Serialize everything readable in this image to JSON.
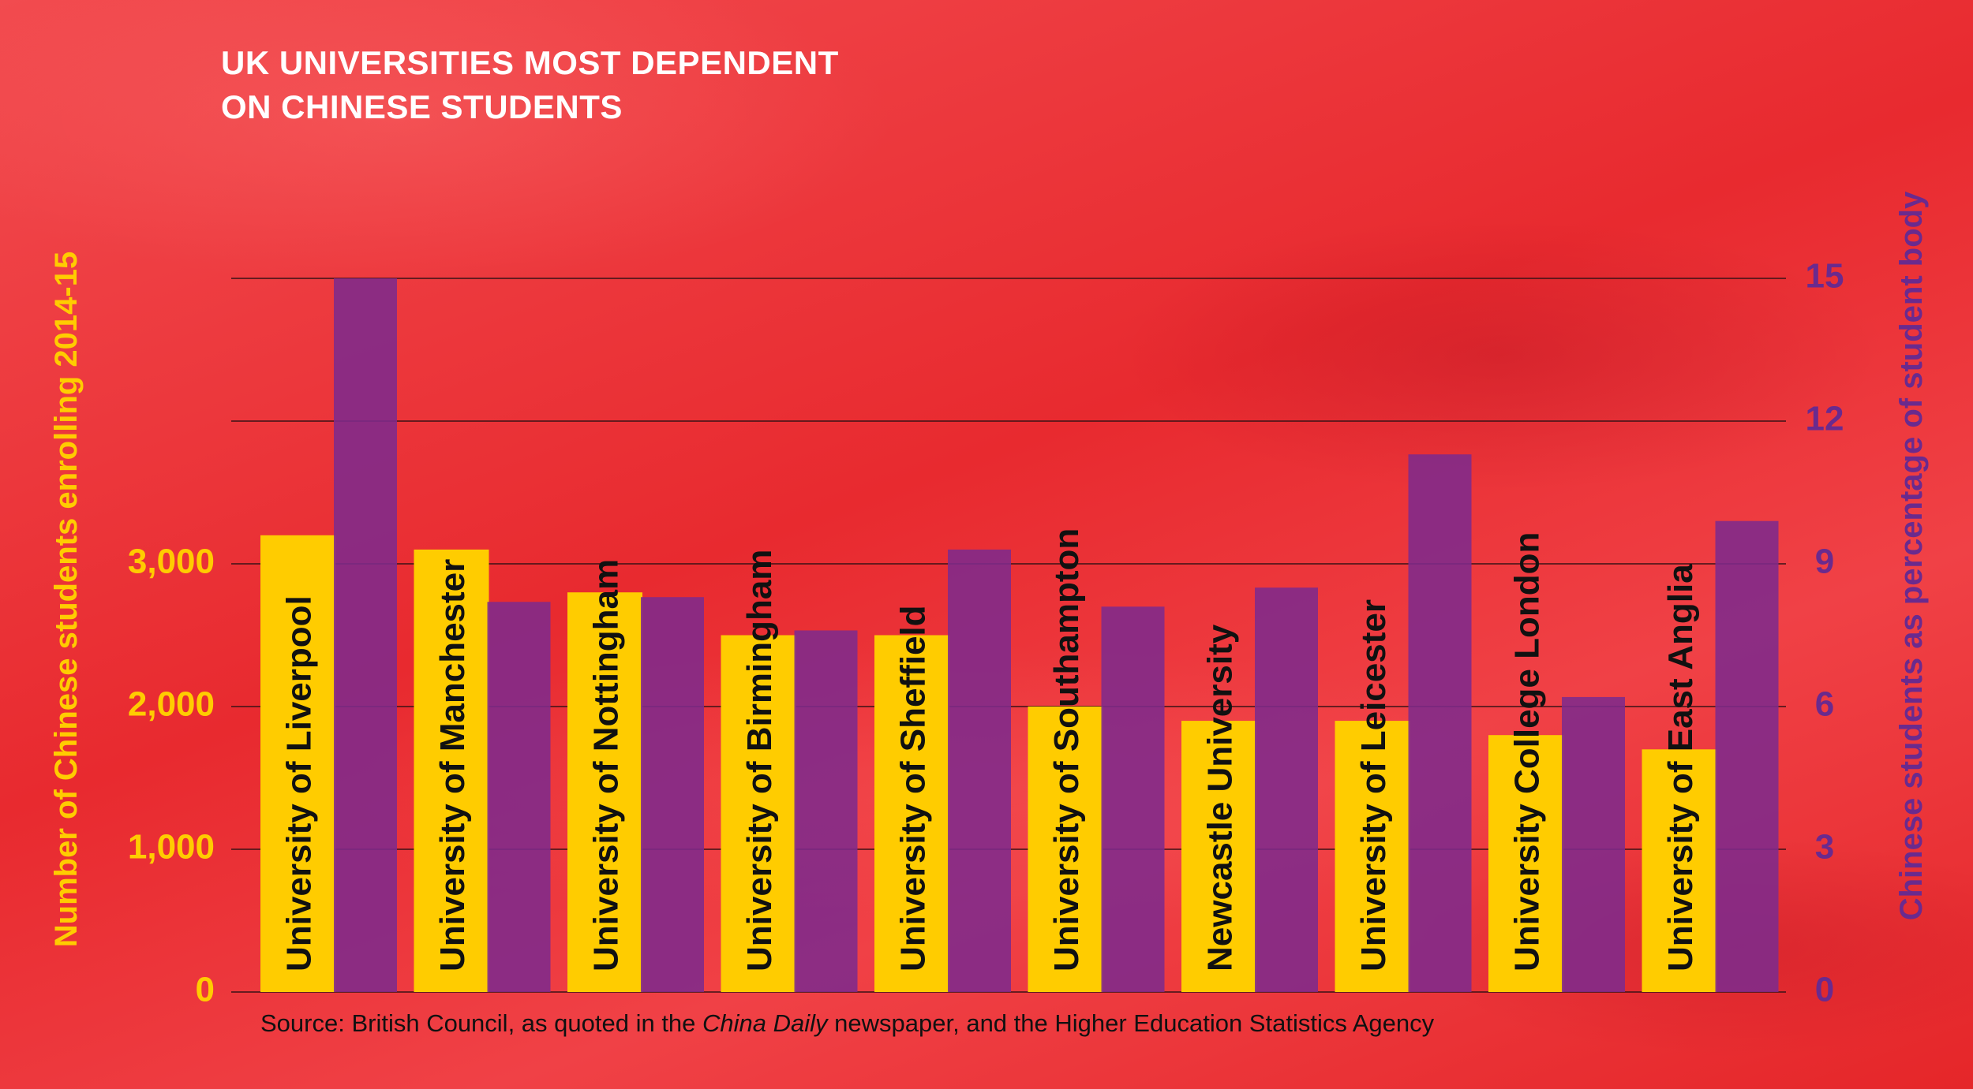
{
  "chart_data": {
    "type": "bar",
    "title": "UK UNIVERSITIES MOST DEPENDENT ON CHINESE STUDENTS",
    "title_lines": [
      "UK UNIVERSITIES MOST DEPENDENT",
      "ON CHINESE STUDENTS"
    ],
    "categories": [
      "University of Liverpool",
      "University of Manchester",
      "University of Nottingham",
      "University of Birmingham",
      "University of Sheffield",
      "University of Southampton",
      "Newcastle University",
      "University of Leicester",
      "University College London",
      "University of East Anglia"
    ],
    "series": [
      {
        "name": "Number of Chinese students enrolling 2014-15",
        "axis": "left",
        "color": "#ffcc00",
        "values": [
          3200,
          3100,
          2800,
          2500,
          2500,
          2000,
          1900,
          1900,
          1800,
          1700
        ]
      },
      {
        "name": "Chinese students as percentage of student body",
        "axis": "right",
        "color": "#7e2a8c",
        "values": [
          15.0,
          8.2,
          8.3,
          7.6,
          9.3,
          8.1,
          8.5,
          11.3,
          6.2,
          9.9
        ]
      }
    ],
    "left_axis": {
      "label": "Number of Chinese students enrolling 2014-15",
      "ylim": [
        0,
        5000
      ],
      "ticks": [
        0,
        1000,
        2000,
        3000
      ],
      "tick_labels": [
        "0",
        "1,000",
        "2,000",
        "3,000"
      ],
      "color": "#ffcc00"
    },
    "right_axis": {
      "label": "Chinese students as percentage of student body",
      "ylim": [
        0,
        15
      ],
      "ticks": [
        0,
        3,
        6,
        9,
        12,
        15
      ],
      "tick_labels": [
        "0",
        "3",
        "6",
        "9",
        "12",
        "15"
      ],
      "color": "#6a2a8e"
    },
    "grid": true,
    "source": {
      "prefix": "Source: British Council, as quoted in the ",
      "italic": "China Daily",
      "suffix": " newspaper, and the Higher Education Statistics Agency"
    }
  }
}
